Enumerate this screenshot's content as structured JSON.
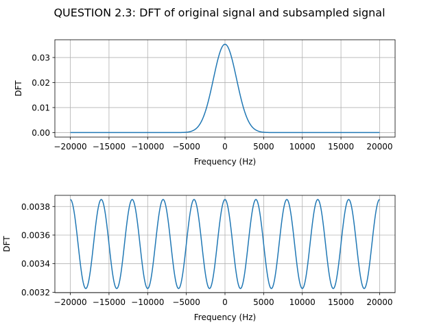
{
  "figure": {
    "title": "QUESTION 2.3: DFT of original signal and subsampled signal"
  },
  "chart_data": [
    {
      "type": "line",
      "xlabel": "Frequency (Hz)",
      "ylabel": "DFT",
      "xlim": [
        -22000,
        22000
      ],
      "ylim": [
        -0.0018,
        0.0371
      ],
      "xticks": [
        -20000,
        -15000,
        -10000,
        -5000,
        0,
        5000,
        10000,
        15000,
        20000
      ],
      "xtick_labels": [
        "−20000",
        "−15000",
        "−10000",
        "−5000",
        "0",
        "5000",
        "10000",
        "15000",
        "20000"
      ],
      "yticks": [
        0.0,
        0.01,
        0.02,
        0.03
      ],
      "ytick_labels": [
        "0.00",
        "0.01",
        "0.02",
        "0.03"
      ],
      "grid": true,
      "series": [
        {
          "color": "#1f77b4",
          "x": [
            -20000,
            -10000,
            -6000,
            -5000,
            -4500,
            -4000,
            -3500,
            -3000,
            -2500,
            -2000,
            -1500,
            -1000,
            -500,
            0,
            500,
            1000,
            1500,
            2000,
            2500,
            3000,
            3500,
            4000,
            4500,
            5000,
            6000,
            10000,
            20000
          ],
          "y": [
            0.0,
            0.0,
            1e-05,
            0.00015,
            0.0004,
            0.0009,
            0.0019,
            0.0037,
            0.0066,
            0.0108,
            0.0163,
            0.0226,
            0.0286,
            0.0353,
            0.0286,
            0.0226,
            0.0163,
            0.0108,
            0.0066,
            0.0037,
            0.0019,
            0.0009,
            0.0004,
            0.00015,
            1e-05,
            0.0,
            0.0
          ]
        }
      ]
    },
    {
      "type": "line",
      "xlabel": "Frequency (Hz)",
      "ylabel": "DFT",
      "xlim": [
        -22000,
        22000
      ],
      "ylim": [
        0.003197,
        0.003878
      ],
      "xticks": [
        -20000,
        -15000,
        -10000,
        -5000,
        0,
        5000,
        10000,
        15000,
        20000
      ],
      "xtick_labels": [
        "−20000",
        "−15000",
        "−10000",
        "−5000",
        "0",
        "5000",
        "10000",
        "15000",
        "20000"
      ],
      "yticks": [
        0.0032,
        0.0034,
        0.0036,
        0.0038
      ],
      "ytick_labels": [
        "0.0032",
        "0.0034",
        "0.0036",
        "0.0038"
      ],
      "grid": true,
      "series": [
        {
          "color": "#1f77b4",
          "x": [
            -20000,
            -18000,
            -16000,
            -14000,
            -12000,
            -10000,
            -8000,
            -6000,
            -4000,
            -2000,
            0,
            2000,
            4000,
            6000,
            8000,
            10000,
            12000,
            14000,
            16000,
            18000,
            20000
          ],
          "y": [
            0.003849,
            0.003226,
            0.003849,
            0.003226,
            0.003849,
            0.003226,
            0.003849,
            0.003226,
            0.003849,
            0.003226,
            0.003849,
            0.003226,
            0.003849,
            0.003226,
            0.003849,
            0.003226,
            0.003849,
            0.003226,
            0.003849,
            0.003226,
            0.003849
          ],
          "shape": "sinusoid"
        }
      ]
    }
  ]
}
